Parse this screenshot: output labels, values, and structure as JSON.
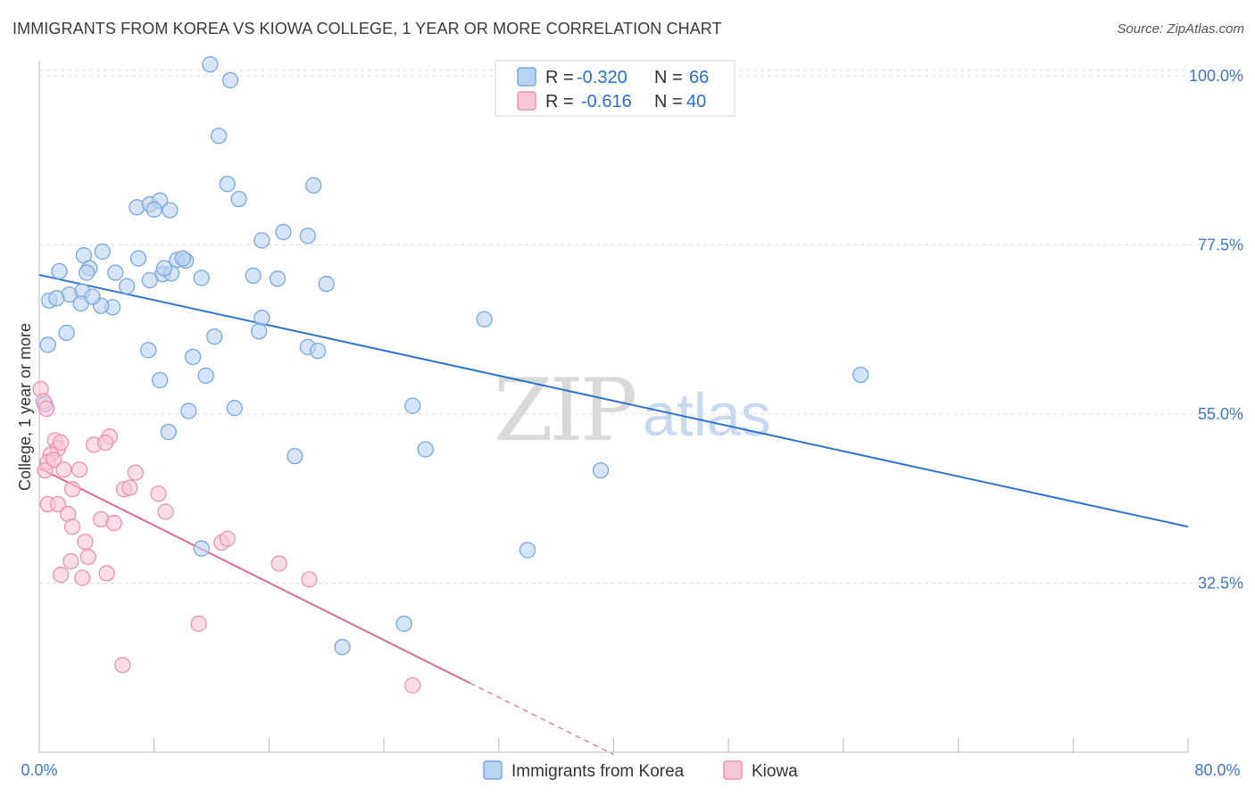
{
  "header": {
    "title": "IMMIGRANTS FROM KOREA VS KIOWA COLLEGE, 1 YEAR OR MORE CORRELATION CHART",
    "source": "Source: ZipAtlas.com"
  },
  "watermark": {
    "zip": "ZIP",
    "atlas": "atlas"
  },
  "legend": {
    "r_label": "R =",
    "n_label": "N =",
    "series": [
      {
        "r": "-0.320",
        "n": "66"
      },
      {
        "r": "-0.616",
        "n": "40"
      }
    ]
  },
  "colors": {
    "korea_fill": "#b9d3f2",
    "korea_stroke": "#7aa8df",
    "korea_line": "#2f72d2",
    "kiowa_fill": "#f8c7d6",
    "kiowa_stroke": "#e993b0",
    "kiowa_line": "#e06a93",
    "grid": "#dcdcdc",
    "tick_text": "#3f78c8"
  },
  "chart_data": {
    "type": "scatter",
    "title": "IMMIGRANTS FROM KOREA VS KIOWA COLLEGE, 1 YEAR OR MORE CORRELATION CHART",
    "xlabel": "Immigrants from Korea",
    "ylabel": "College, 1 year or more",
    "xlim": [
      0,
      80
    ],
    "ylim": [
      10,
      102
    ],
    "x_tick_labels": [
      "0.0%",
      "80.0%"
    ],
    "y_ticks": [
      32.5,
      55.0,
      77.5,
      100.0
    ],
    "y_tick_labels": [
      "32.5%",
      "55.0%",
      "77.5%",
      "100.0%"
    ],
    "grid": true,
    "legend_position": "top-center",
    "series": [
      {
        "name": "Immigrants from Korea",
        "r": -0.32,
        "n": 66,
        "trend": {
          "x": [
            0,
            80
          ],
          "y": [
            73.5,
            40.0
          ]
        },
        "points": [
          [
            11.9,
            101.5
          ],
          [
            13.3,
            99.4
          ],
          [
            12.5,
            92.0
          ],
          [
            13.1,
            85.6
          ],
          [
            13.9,
            83.6
          ],
          [
            19.1,
            85.4
          ],
          [
            17.0,
            79.2
          ],
          [
            18.7,
            78.7
          ],
          [
            6.8,
            82.5
          ],
          [
            7.7,
            82.9
          ],
          [
            8.4,
            83.4
          ],
          [
            8.0,
            82.2
          ],
          [
            9.1,
            82.1
          ],
          [
            15.5,
            78.1
          ],
          [
            3.1,
            76.1
          ],
          [
            4.4,
            76.6
          ],
          [
            6.9,
            75.7
          ],
          [
            9.6,
            75.5
          ],
          [
            3.5,
            74.4
          ],
          [
            1.4,
            74.0
          ],
          [
            3.3,
            73.8
          ],
          [
            5.3,
            73.8
          ],
          [
            8.6,
            73.6
          ],
          [
            9.2,
            73.7
          ],
          [
            10.2,
            75.4
          ],
          [
            10.0,
            75.7
          ],
          [
            14.9,
            73.4
          ],
          [
            16.6,
            73.0
          ],
          [
            11.3,
            73.1
          ],
          [
            20.0,
            72.3
          ],
          [
            7.7,
            72.8
          ],
          [
            6.1,
            72.0
          ],
          [
            3.0,
            71.3
          ],
          [
            2.1,
            70.9
          ],
          [
            0.7,
            70.1
          ],
          [
            1.2,
            70.4
          ],
          [
            2.9,
            69.7
          ],
          [
            5.1,
            69.2
          ],
          [
            4.3,
            69.4
          ],
          [
            15.5,
            67.8
          ],
          [
            31.0,
            67.6
          ],
          [
            15.3,
            66.0
          ],
          [
            12.2,
            65.3
          ],
          [
            1.9,
            65.8
          ],
          [
            0.6,
            64.2
          ],
          [
            18.7,
            63.9
          ],
          [
            19.4,
            63.4
          ],
          [
            7.6,
            63.5
          ],
          [
            10.7,
            62.6
          ],
          [
            11.6,
            60.1
          ],
          [
            8.4,
            59.5
          ],
          [
            26.0,
            56.1
          ],
          [
            57.2,
            60.2
          ],
          [
            13.6,
            55.8
          ],
          [
            0.4,
            56.3
          ],
          [
            10.4,
            55.4
          ],
          [
            9.0,
            52.6
          ],
          [
            26.9,
            50.3
          ],
          [
            17.8,
            49.4
          ],
          [
            39.1,
            47.5
          ],
          [
            11.3,
            37.1
          ],
          [
            34.0,
            36.9
          ],
          [
            25.4,
            27.1
          ],
          [
            21.1,
            24.0
          ],
          [
            3.7,
            70.6
          ],
          [
            8.7,
            74.4
          ]
        ]
      },
      {
        "name": "Kiowa",
        "r": -0.616,
        "n": 40,
        "trend": {
          "x": [
            0,
            30
          ],
          "y": [
            47.8,
            19.2
          ]
        },
        "trend_extension": {
          "x": [
            30,
            40
          ],
          "y": [
            19.2,
            9.7
          ]
        },
        "points": [
          [
            0.1,
            58.3
          ],
          [
            0.3,
            56.7
          ],
          [
            0.5,
            55.7
          ],
          [
            1.1,
            51.5
          ],
          [
            1.3,
            50.4
          ],
          [
            1.5,
            51.2
          ],
          [
            0.8,
            49.6
          ],
          [
            0.6,
            48.6
          ],
          [
            1.0,
            48.9
          ],
          [
            0.4,
            47.5
          ],
          [
            1.7,
            47.6
          ],
          [
            2.8,
            47.6
          ],
          [
            3.8,
            50.9
          ],
          [
            4.9,
            52.0
          ],
          [
            4.6,
            51.2
          ],
          [
            6.7,
            47.2
          ],
          [
            5.9,
            45.0
          ],
          [
            6.3,
            45.2
          ],
          [
            2.3,
            45.0
          ],
          [
            8.3,
            44.4
          ],
          [
            8.8,
            42.0
          ],
          [
            0.6,
            43.0
          ],
          [
            1.3,
            43.0
          ],
          [
            2.0,
            41.7
          ],
          [
            4.3,
            41.0
          ],
          [
            5.2,
            40.5
          ],
          [
            2.3,
            40.0
          ],
          [
            3.2,
            38.0
          ],
          [
            12.7,
            37.9
          ],
          [
            13.1,
            38.4
          ],
          [
            3.4,
            36.0
          ],
          [
            2.2,
            35.4
          ],
          [
            1.5,
            33.6
          ],
          [
            3.0,
            33.2
          ],
          [
            4.7,
            33.8
          ],
          [
            16.7,
            35.1
          ],
          [
            18.8,
            33.0
          ],
          [
            11.1,
            27.1
          ],
          [
            5.8,
            21.6
          ],
          [
            26.0,
            18.9
          ]
        ]
      }
    ]
  },
  "bottom_legend": {
    "items": [
      "Immigrants from Korea",
      "Kiowa"
    ]
  }
}
